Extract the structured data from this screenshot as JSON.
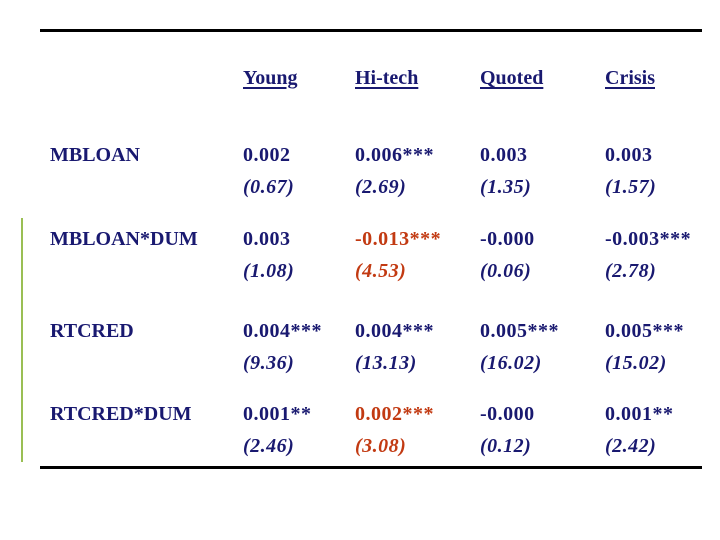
{
  "slide": {
    "background": "#ffffff",
    "text_color": "#191970",
    "highlight_color": "#c23a12",
    "rule_color": "#000000",
    "accent_line_color": "#9abf54"
  },
  "table": {
    "column_headers": [
      "Young",
      "Hi-tech",
      "Quoted",
      "Crisis"
    ],
    "rows": [
      {
        "label": "MBLOAN",
        "cells": [
          {
            "value": "0.002",
            "tstat": "(0.67)",
            "highlight": false
          },
          {
            "value": "0.006***",
            "tstat": "(2.69)",
            "highlight": false
          },
          {
            "value": "0.003",
            "tstat": "(1.35)",
            "highlight": false
          },
          {
            "value": "0.003",
            "tstat": "(1.57)",
            "highlight": false
          }
        ]
      },
      {
        "label": "MBLOAN*DUM",
        "cells": [
          {
            "value": "0.003",
            "tstat": "(1.08)",
            "highlight": false
          },
          {
            "value": "-0.013***",
            "tstat": "(4.53)",
            "highlight": true
          },
          {
            "value": "-0.000",
            "tstat": "(0.06)",
            "highlight": false
          },
          {
            "value": "-0.003***",
            "tstat": "(2.78)",
            "highlight": false
          }
        ]
      },
      {
        "label": "RTCRED",
        "cells": [
          {
            "value": "0.004***",
            "tstat": "(9.36)",
            "highlight": false
          },
          {
            "value": "0.004***",
            "tstat": "(13.13)",
            "highlight": false
          },
          {
            "value": "0.005***",
            "tstat": "(16.02)",
            "highlight": false
          },
          {
            "value": "0.005***",
            "tstat": "(15.02)",
            "highlight": false
          }
        ]
      },
      {
        "label": "RTCRED*DUM",
        "cells": [
          {
            "value": "0.001**",
            "tstat": "(2.46)",
            "highlight": false
          },
          {
            "value": "0.002***",
            "tstat": "(3.08)",
            "highlight": true
          },
          {
            "value": "-0.000",
            "tstat": "(0.12)",
            "highlight": false
          },
          {
            "value": "0.001**",
            "tstat": "(2.42)",
            "highlight": false
          }
        ]
      }
    ]
  }
}
